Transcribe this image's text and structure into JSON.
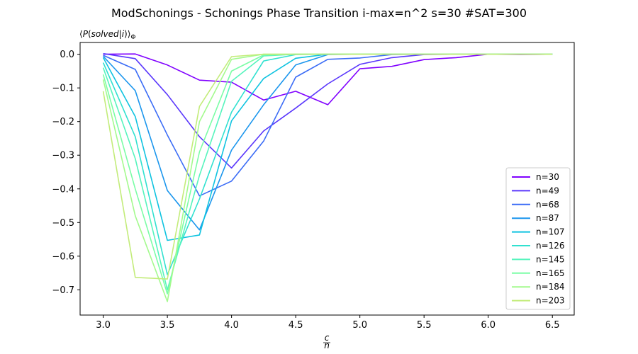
{
  "chart_data": {
    "type": "line",
    "title": "ModSchonings - Schonings Phase Transition  i-max=n^2 s=30 #SAT=300",
    "ylabel": "⟨P(solved|i)⟩_Φ",
    "xlabel": "c/n",
    "xlim": [
      2.82,
      6.67
    ],
    "ylim": [
      -0.775,
      0.035
    ],
    "xticks": [
      3.0,
      3.5,
      4.0,
      4.5,
      5.0,
      5.5,
      6.0,
      6.5
    ],
    "xtick_labels": [
      "3.0",
      "3.5",
      "4.0",
      "4.5",
      "5.0",
      "5.5",
      "6.0",
      "6.5"
    ],
    "yticks": [
      0.0,
      -0.1,
      -0.2,
      -0.3,
      -0.4,
      -0.5,
      -0.6,
      -0.7
    ],
    "ytick_labels": [
      "0.0",
      "−0.1",
      "−0.2",
      "−0.3",
      "−0.4",
      "−0.5",
      "−0.6",
      "−0.7"
    ],
    "grid": false,
    "legend_position": "lower-right",
    "x": [
      3.0,
      3.25,
      3.5,
      3.75,
      4.0,
      4.25,
      4.5,
      4.75,
      5.0,
      5.25,
      5.5,
      5.75,
      6.0,
      6.25,
      6.5
    ],
    "series": [
      {
        "name": "n=30",
        "color": "#8000ff",
        "values": [
          0.0,
          0.001,
          -0.032,
          -0.077,
          -0.083,
          -0.136,
          -0.11,
          -0.15,
          -0.043,
          -0.036,
          -0.016,
          -0.01,
          0.0,
          -0.001,
          0.0
        ]
      },
      {
        "name": "n=49",
        "color": "#5a37fc",
        "values": [
          0.002,
          -0.013,
          -0.12,
          -0.245,
          -0.338,
          -0.228,
          -0.16,
          -0.088,
          -0.03,
          -0.01,
          -0.001,
          0.0,
          0.0,
          0.0,
          0.0
        ]
      },
      {
        "name": "n=68",
        "color": "#3b6cf6",
        "values": [
          -0.003,
          -0.045,
          -0.24,
          -0.421,
          -0.377,
          -0.258,
          -0.068,
          -0.015,
          -0.011,
          -0.001,
          0.0,
          0.0,
          0.0,
          0.0,
          0.0
        ]
      },
      {
        "name": "n=87",
        "color": "#1b96ed",
        "values": [
          -0.006,
          -0.108,
          -0.405,
          -0.522,
          -0.285,
          -0.15,
          -0.032,
          -0.001,
          0.0,
          0.0,
          0.0,
          0.0,
          0.0,
          0.0,
          0.0
        ]
      },
      {
        "name": "n=107",
        "color": "#0fc3e0",
        "values": [
          -0.01,
          -0.185,
          -0.553,
          -0.537,
          -0.198,
          -0.072,
          -0.012,
          0.0,
          0.0,
          0.0,
          0.0,
          0.0,
          0.0,
          0.0,
          0.0
        ]
      },
      {
        "name": "n=126",
        "color": "#31e1d0",
        "values": [
          -0.025,
          -0.245,
          -0.655,
          -0.43,
          -0.172,
          -0.02,
          -0.001,
          0.0,
          0.0,
          0.0,
          0.0,
          0.0,
          0.0,
          0.0,
          0.0
        ]
      },
      {
        "name": "n=145",
        "color": "#56f4bd",
        "values": [
          -0.04,
          -0.31,
          -0.7,
          -0.36,
          -0.08,
          -0.005,
          0.0,
          0.0,
          0.0,
          0.0,
          0.0,
          0.0,
          0.0,
          0.0,
          0.0
        ]
      },
      {
        "name": "n=165",
        "color": "#7bfda6",
        "values": [
          -0.06,
          -0.4,
          -0.712,
          -0.29,
          -0.05,
          -0.002,
          0.0,
          0.0,
          0.0,
          0.0,
          0.0,
          0.0,
          0.0,
          0.0,
          0.0
        ]
      },
      {
        "name": "n=184",
        "color": "#a4fa8e",
        "values": [
          -0.075,
          -0.48,
          -0.735,
          -0.2,
          -0.015,
          0.0,
          0.0,
          0.0,
          0.0,
          0.0,
          0.0,
          0.0,
          0.0,
          0.0,
          0.0
        ]
      },
      {
        "name": "n=203",
        "color": "#c3ec7a",
        "values": [
          -0.11,
          -0.663,
          -0.668,
          -0.155,
          -0.007,
          0.0,
          0.0,
          0.0,
          0.0,
          0.0,
          0.0,
          0.0,
          0.0,
          0.0,
          0.0
        ]
      }
    ]
  }
}
